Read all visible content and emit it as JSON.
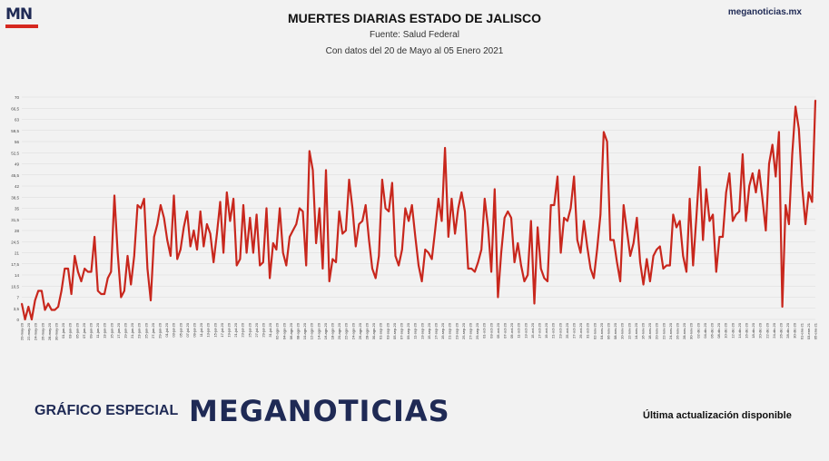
{
  "brand": {
    "logo_text": "MN",
    "site": "meganoticias.mx"
  },
  "footer": {
    "special_label": "GRÁFICO ESPECIAL",
    "brand_name": "MEGANOTICIAS",
    "update_note": "Última actualización disponible"
  },
  "colors": {
    "line": "#c8271d",
    "brand_navy": "#1f2a55",
    "brand_red": "#d62820"
  },
  "chart_data": {
    "type": "line",
    "title": "MUERTES DIARIAS ESTADO DE JALISCO",
    "subtitle": "Fuente: Salud Federal",
    "subtitle2": "Con datos del 20 de Mayo al 05 Enero 2021",
    "ylim": [
      0,
      70
    ],
    "yticks": [
      "0",
      "3,5",
      "7",
      "10,5",
      "14",
      "17,5",
      "21",
      "24,5",
      "28",
      "31,5",
      "35",
      "38,5",
      "42",
      "45,5",
      "49",
      "52,5",
      "56",
      "59,5",
      "63",
      "66,5",
      "70"
    ],
    "xlabels": [
      "20-may-20",
      "22-may-20",
      "24-may-20",
      "26-may-20",
      "28-may-20",
      "30-may-20",
      "01-jun-20",
      "03-jun-20",
      "05-jun-20",
      "07-jun-20",
      "09-jun-20",
      "11-jun-20",
      "13-jun-20",
      "15-jun-20",
      "17-jun-20",
      "19-jun-20",
      "21-jun-20",
      "23-jun-20",
      "25-jun-20",
      "27-jun-20",
      "29-jun-20",
      "01-jul-20",
      "03-jul-20",
      "05-jul-20",
      "07-jul-20",
      "09-jul-20",
      "11-jul-20",
      "13-jul-20",
      "15-jul-20",
      "17-jul-20",
      "19-jul-20",
      "21-jul-20",
      "23-jul-20",
      "25-jul-20",
      "27-jul-20",
      "29-jul-20",
      "31-jul-20",
      "02-ago-20",
      "04-ago-20",
      "06-ago-20",
      "08-ago-20",
      "10-ago-20",
      "12-ago-20",
      "14-ago-20",
      "16-ago-20",
      "18-ago-20",
      "20-ago-20",
      "22-ago-20",
      "24-ago-20",
      "26-ago-20",
      "28-ago-20",
      "30-ago-20",
      "01-sep-20",
      "03-sep-20",
      "05-sep-20",
      "07-sep-20",
      "09-sep-20",
      "11-sep-20",
      "13-sep-20",
      "15-sep-20",
      "17-sep-20",
      "19-sep-20",
      "21-sep-20",
      "23-sep-20",
      "25-sep-20",
      "27-sep-20",
      "29-sep-20",
      "01-oct-20",
      "03-oct-20",
      "05-oct-20",
      "07-oct-20",
      "09-oct-20",
      "11-oct-20",
      "13-oct-20",
      "15-oct-20",
      "17-oct-20",
      "19-oct-20",
      "21-oct-20",
      "23-oct-20",
      "25-oct-20",
      "27-oct-20",
      "29-oct-20",
      "31-oct-20",
      "02-nov-20",
      "04-nov-20",
      "06-nov-20",
      "08-nov-20",
      "10-nov-20",
      "12-nov-20",
      "14-nov-20",
      "16-nov-20",
      "18-nov-20",
      "20-nov-20",
      "22-nov-20",
      "24-nov-20",
      "26-nov-20",
      "28-nov-20",
      "30-nov-20",
      "02-dic-20",
      "04-dic-20",
      "06-dic-20",
      "08-dic-20",
      "10-dic-20",
      "12-dic-20",
      "14-dic-20",
      "16-dic-20",
      "18-dic-20",
      "20-dic-20",
      "22-dic-20",
      "24-dic-20",
      "26-dic-20",
      "28-dic-20",
      "30-dic-20",
      "01-ene-21",
      "03-ene-21",
      "05-ene-21"
    ],
    "series": [
      {
        "values": [
          5,
          0,
          4,
          0,
          6,
          9,
          9,
          3,
          5,
          3,
          3,
          4,
          9,
          16,
          16,
          8,
          20,
          15,
          12,
          16,
          15,
          15,
          26,
          9,
          8,
          8,
          13,
          15,
          39,
          21,
          7,
          9,
          20,
          11,
          20,
          36,
          35,
          38,
          16,
          6,
          26,
          30,
          36,
          32,
          25,
          20,
          39,
          19,
          22,
          29,
          34,
          23,
          28,
          22,
          34,
          23,
          30,
          27,
          18,
          27,
          37,
          21,
          40,
          31,
          38,
          17,
          19,
          36,
          21,
          32,
          21,
          33,
          17,
          18,
          35,
          13,
          24,
          22,
          35,
          21,
          17,
          26,
          28,
          30,
          35,
          34,
          17,
          53,
          47,
          24,
          35,
          16,
          47,
          12,
          19,
          18,
          34,
          27,
          28,
          44,
          35,
          23,
          30,
          31,
          36,
          25,
          16,
          13,
          20,
          44,
          35,
          34,
          43,
          20,
          17,
          22,
          35,
          31,
          36,
          26,
          17,
          12,
          22,
          21,
          19,
          28,
          38,
          31,
          54,
          26,
          38,
          27,
          35,
          40,
          34,
          16,
          16,
          15,
          18,
          22,
          38,
          29,
          15,
          41,
          7,
          21,
          32,
          34,
          32,
          18,
          24,
          17,
          12,
          14,
          31,
          5,
          29,
          16,
          13,
          12,
          36,
          36,
          45,
          21,
          32,
          31,
          35,
          45,
          25,
          21,
          31,
          23,
          16,
          13,
          22,
          33,
          59,
          56,
          25,
          25,
          18,
          12,
          36,
          28,
          20,
          24,
          32,
          18,
          11,
          19,
          12,
          20,
          22,
          23,
          16,
          17,
          17,
          33,
          29,
          31,
          20,
          15,
          38,
          17,
          32,
          48,
          25,
          41,
          31,
          33,
          15,
          26,
          26,
          40,
          46,
          31,
          33,
          34,
          52,
          31,
          42,
          46,
          40,
          47,
          38,
          28,
          49,
          55,
          45,
          59,
          4,
          36,
          30,
          52,
          67,
          60,
          42,
          30,
          40,
          37,
          69
        ]
      }
    ]
  }
}
